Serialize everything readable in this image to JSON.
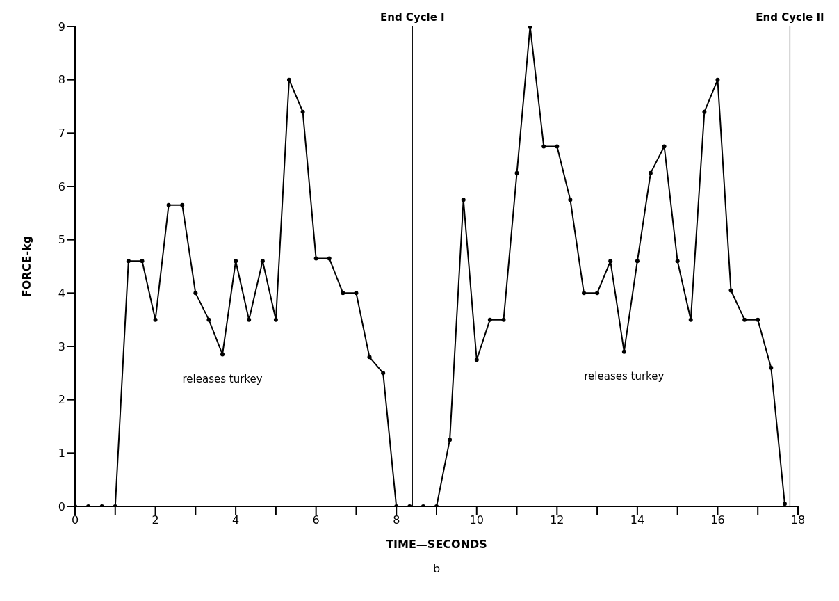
{
  "chart_data": {
    "type": "line",
    "xlabel": "TIME—SECONDS",
    "ylabel": "FORCE-kg",
    "x": [
      0,
      0.33,
      0.67,
      1,
      1.33,
      1.67,
      2,
      2.33,
      2.67,
      3,
      3.33,
      3.67,
      4,
      4.33,
      4.67,
      5,
      5.33,
      5.67,
      6,
      6.33,
      6.67,
      7,
      7.33,
      7.67,
      8,
      8.33,
      8.67,
      9,
      9.33,
      9.67,
      10,
      10.33,
      10.67,
      11,
      11.33,
      11.67,
      12,
      12.33,
      12.67,
      13,
      13.33,
      13.67,
      14,
      14.33,
      14.67,
      15,
      15.33,
      15.67,
      16,
      16.33,
      16.67,
      17,
      17.33,
      17.67
    ],
    "series": [
      {
        "color": "#000000",
        "values": [
          0,
          0,
          0,
          0,
          4.6,
          4.6,
          3.5,
          5.65,
          5.65,
          4.0,
          3.5,
          2.85,
          4.6,
          3.5,
          4.6,
          3.5,
          8.0,
          7.4,
          4.65,
          4.65,
          4.0,
          4.0,
          2.8,
          2.5,
          0,
          0,
          0,
          0,
          1.25,
          5.75,
          2.75,
          3.5,
          3.5,
          6.25,
          9.0,
          6.75,
          6.75,
          5.75,
          4.0,
          4.0,
          4.6,
          2.9,
          4.6,
          6.25,
          6.75,
          4.6,
          3.5,
          7.4,
          8.0,
          4.05,
          3.5,
          3.5,
          2.6,
          0.05
        ]
      }
    ],
    "xlim": [
      0,
      18
    ],
    "ylim": [
      0,
      9
    ],
    "xticks": [
      0,
      {
        "value": 1,
        "label": null
      },
      2,
      {
        "value": 3,
        "label": null
      },
      4,
      {
        "value": 5,
        "label": null
      },
      6,
      {
        "value": 7,
        "label": null
      },
      8,
      {
        "value": 9,
        "label": null
      },
      10,
      {
        "value": 11,
        "label": null
      },
      12,
      {
        "value": 13,
        "label": null
      },
      14,
      {
        "value": 15,
        "label": null
      },
      16,
      {
        "value": 17,
        "label": null
      },
      18
    ],
    "yticks": [
      0,
      1,
      2,
      3,
      4,
      5,
      6,
      7,
      8,
      9
    ],
    "ref_lines": [
      {
        "axis": "x",
        "value": 8.4,
        "label": "End Cycle I",
        "color": "#000000"
      },
      {
        "axis": "x",
        "value": 17.8,
        "label": "End Cycle II",
        "color": "#000000"
      }
    ],
    "annotations": [
      {
        "text": "releases turkey",
        "x": 3.67,
        "y": 2.85
      },
      {
        "text": "releases turkey",
        "x": 13.67,
        "y": 2.9
      },
      "b"
    ],
    "marker": "circle",
    "line_style": "solid",
    "grid": false,
    "legend": false
  }
}
